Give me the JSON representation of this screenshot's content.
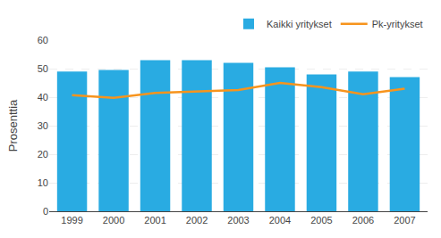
{
  "chart_data": {
    "type": "bar",
    "x": [
      1999,
      2000,
      2001,
      2002,
      2003,
      2004,
      2005,
      2006,
      2007
    ],
    "series": [
      {
        "name": "Kaikki yritykset",
        "type": "bar",
        "color": "#29ABE2",
        "values": [
          49,
          49.5,
          53,
          53,
          52,
          50.5,
          48,
          49,
          47
        ]
      },
      {
        "name": "Pk-yritykset",
        "type": "line",
        "color": "#F7941D",
        "values": [
          40.7,
          39.8,
          41.5,
          42,
          42.5,
          45,
          43.5,
          41,
          43
        ]
      }
    ],
    "ylabel": "Prosenttia",
    "xlim": [
      1998.45,
      2007.55
    ],
    "xticks": [
      1999,
      2000,
      2001,
      2002,
      2003,
      2004,
      2005,
      2006,
      2007
    ],
    "ylim": [
      0,
      60
    ],
    "yticks": [
      0,
      10,
      20,
      30,
      40,
      50,
      60
    ],
    "grid": true,
    "legend": "upper right"
  }
}
